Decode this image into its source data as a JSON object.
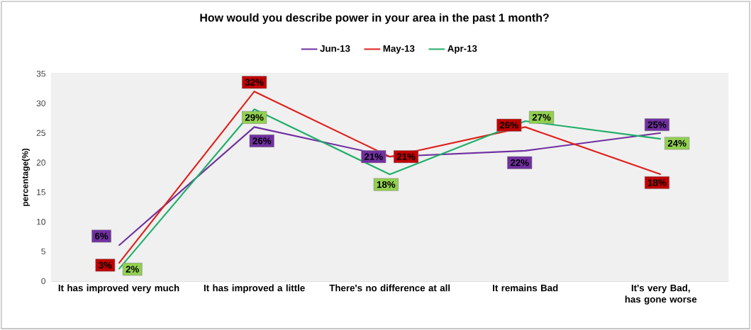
{
  "chart_data": {
    "type": "line",
    "title": "How would you describe power in your area in the past 1 month?",
    "ylabel": "percentage(%)",
    "categories": [
      "It has improved very much",
      "It has improved a little",
      "There's no difference at all",
      "It remains Bad",
      "It's very Bad, has gone worse"
    ],
    "series": [
      {
        "name": "Jun-13",
        "color": "#7030a0",
        "values": [
          6,
          26,
          21,
          22,
          25
        ],
        "value_labels": [
          "6%",
          "26%",
          "21%",
          "22%",
          "25%"
        ]
      },
      {
        "name": "May-13",
        "color": "#e0201a",
        "values": [
          3,
          32,
          21,
          26,
          18
        ],
        "value_labels": [
          "3%",
          "32%",
          "21%",
          "26%",
          "18%"
        ]
      },
      {
        "name": "Apr-13",
        "color": "#1fae6a",
        "values": [
          2,
          29,
          18,
          27,
          24
        ],
        "value_labels": [
          "2%",
          "29%",
          "18%",
          "27%",
          "24%"
        ]
      }
    ],
    "ylim": [
      0,
      35
    ],
    "yticks": [
      0,
      5,
      10,
      15,
      20,
      25,
      30,
      35
    ],
    "grid": "y",
    "legend": "top",
    "marker": "none",
    "line_style": "solid"
  }
}
